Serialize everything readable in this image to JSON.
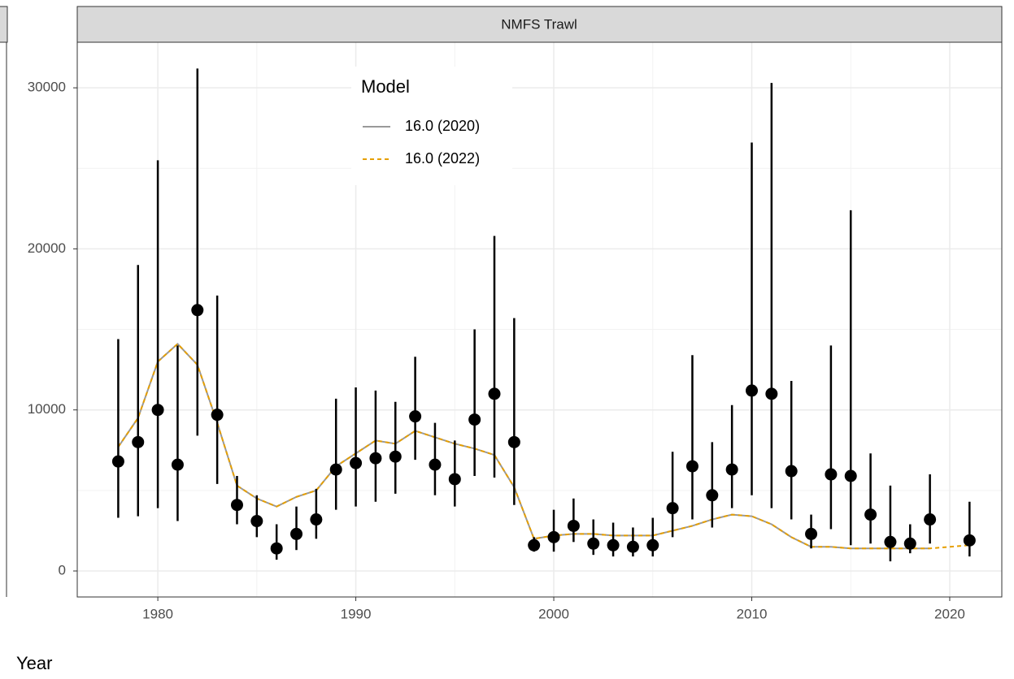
{
  "chart_data": {
    "type": "line",
    "strip": "NMFS Trawl",
    "xlabel": "Year",
    "legend_title": "Model",
    "grid": true,
    "xlim": [
      1975.93,
      2022.63
    ],
    "ylim": [
      -1614,
      32830
    ],
    "xticks": [
      1980,
      1990,
      2000,
      2010,
      2020
    ],
    "yticks": [
      0,
      10000,
      20000,
      30000
    ],
    "xminor": [
      1985,
      1995,
      2005,
      2015
    ],
    "yminor": [
      5000,
      15000,
      25000
    ],
    "observations": {
      "color": "#000000",
      "x": [
        1978,
        1979,
        1980,
        1981,
        1982,
        1983,
        1984,
        1985,
        1986,
        1987,
        1988,
        1989,
        1990,
        1991,
        1992,
        1993,
        1994,
        1995,
        1996,
        1997,
        1998,
        1999,
        2000,
        2001,
        2002,
        2003,
        2004,
        2005,
        2006,
        2007,
        2008,
        2009,
        2010,
        2011,
        2012,
        2013,
        2014,
        2015,
        2016,
        2017,
        2018,
        2019,
        2021
      ],
      "values": [
        6800,
        8000,
        10000,
        6600,
        16200,
        9700,
        4100,
        3100,
        1400,
        2300,
        3200,
        6300,
        6700,
        7000,
        7100,
        9600,
        6600,
        5700,
        9400,
        11000,
        8000,
        1600,
        2100,
        2800,
        1700,
        1600,
        1500,
        1600,
        3900,
        6500,
        4700,
        6300,
        11200,
        11000,
        6200,
        2300,
        6000,
        5900,
        3500,
        1800,
        1700,
        3200,
        1900
      ],
      "lower": [
        3300,
        3400,
        3900,
        3100,
        8400,
        5400,
        2900,
        2100,
        700,
        1300,
        2000,
        3800,
        4000,
        4300,
        4800,
        6900,
        4700,
        4000,
        5900,
        5800,
        4100,
        1200,
        1200,
        1800,
        1000,
        900,
        900,
        900,
        2100,
        3200,
        2700,
        3900,
        4700,
        3900,
        3200,
        1400,
        2600,
        1600,
        1700,
        600,
        1100,
        1700,
        900
      ],
      "upper": [
        14400,
        19000,
        25500,
        14000,
        31200,
        17100,
        5900,
        4700,
        2900,
        4000,
        5100,
        10700,
        11400,
        11200,
        10500,
        13300,
        9200,
        8100,
        15000,
        20800,
        15700,
        2100,
        3800,
        4500,
        3200,
        3000,
        2700,
        3300,
        7400,
        13400,
        8000,
        10300,
        26600,
        30300,
        11800,
        3500,
        14000,
        22400,
        7300,
        5300,
        2900,
        6000,
        4300
      ]
    },
    "series": [
      {
        "name": "16.0 (2020)",
        "color": "#999999",
        "dash": false,
        "x": [
          1978,
          1979,
          1980,
          1981,
          1982,
          1983,
          1984,
          1985,
          1986,
          1987,
          1988,
          1989,
          1990,
          1991,
          1992,
          1993,
          1994,
          1995,
          1996,
          1997,
          1998,
          1999,
          2000,
          2001,
          2002,
          2003,
          2004,
          2005,
          2006,
          2007,
          2008,
          2009,
          2010,
          2011,
          2012,
          2013,
          2014,
          2015,
          2016,
          2017,
          2018,
          2019
        ],
        "values": [
          7700,
          9500,
          13000,
          14100,
          12800,
          9200,
          5300,
          4500,
          4000,
          4600,
          5000,
          6500,
          7300,
          8100,
          7900,
          8700,
          8300,
          7900,
          7600,
          7200,
          5200,
          2000,
          2200,
          2300,
          2300,
          2200,
          2200,
          2200,
          2500,
          2800,
          3200,
          3500,
          3400,
          2900,
          2100,
          1500,
          1500,
          1400,
          1400,
          1400,
          1400,
          1400
        ]
      },
      {
        "name": "16.0 (2022)",
        "color": "#E69F00",
        "dash": true,
        "x": [
          1978,
          1979,
          1980,
          1981,
          1982,
          1983,
          1984,
          1985,
          1986,
          1987,
          1988,
          1989,
          1990,
          1991,
          1992,
          1993,
          1994,
          1995,
          1996,
          1997,
          1998,
          1999,
          2000,
          2001,
          2002,
          2003,
          2004,
          2005,
          2006,
          2007,
          2008,
          2009,
          2010,
          2011,
          2012,
          2013,
          2014,
          2015,
          2016,
          2017,
          2018,
          2019,
          2020,
          2021
        ],
        "values": [
          7700,
          9500,
          13000,
          14100,
          12800,
          9200,
          5300,
          4500,
          4000,
          4600,
          5000,
          6500,
          7300,
          8100,
          7900,
          8700,
          8300,
          7900,
          7600,
          7200,
          5200,
          2000,
          2200,
          2300,
          2300,
          2200,
          2200,
          2200,
          2500,
          2800,
          3200,
          3500,
          3400,
          2900,
          2100,
          1500,
          1500,
          1400,
          1400,
          1400,
          1400,
          1400,
          1500,
          1600
        ]
      }
    ]
  }
}
